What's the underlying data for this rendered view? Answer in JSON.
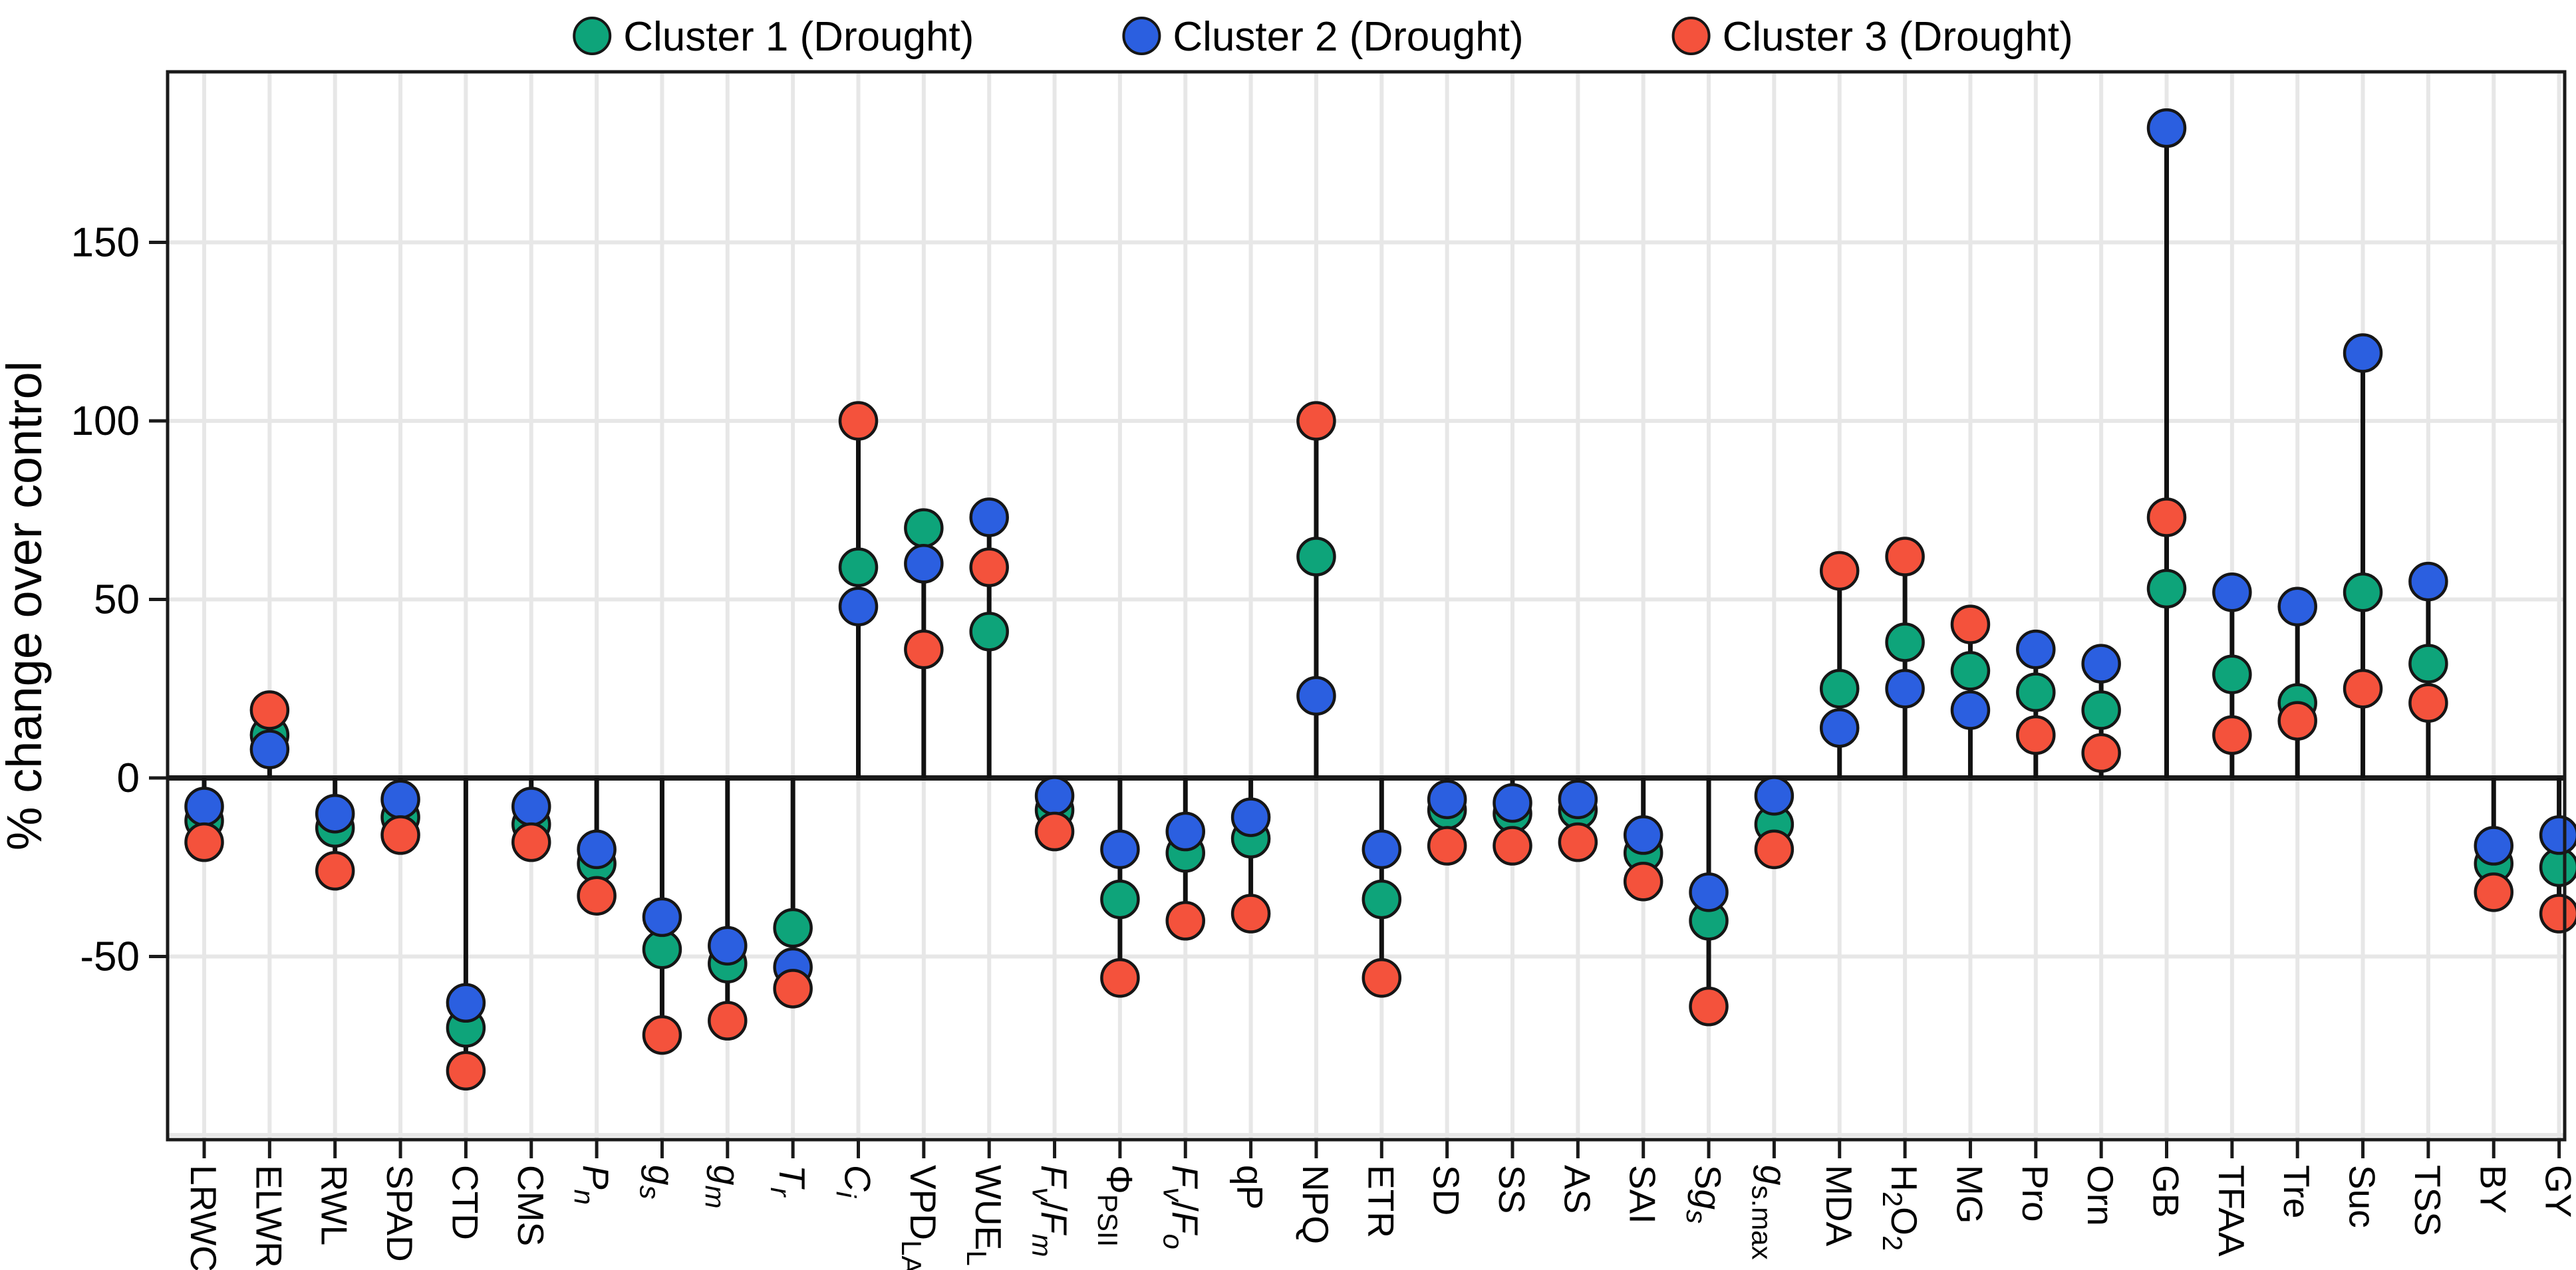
{
  "figure": {
    "background": "#ffffff",
    "legend_position": "top-center",
    "legend": [
      {
        "label": "Cluster 1 (Drought)",
        "color": "#0EA47A"
      },
      {
        "label": "Cluster 2 (Drought)",
        "color": "#2B5FE0"
      },
      {
        "label": "Cluster 3 (Drought)",
        "color": "#F4523C"
      }
    ],
    "colors": {
      "cluster1_green": "#0EA47A",
      "cluster2_blue": "#2B5FE0",
      "cluster3_red": "#F4523C",
      "point_outline": "#161616",
      "stem": "#111111",
      "gridline": "#E7E7E7",
      "axis": "#1a1a1a"
    }
  },
  "chart_data": {
    "type": "scatter",
    "subtype": "lollipop",
    "title": "",
    "xlabel": "",
    "ylabel": "% change over control",
    "ylim": [
      -101,
      198
    ],
    "yticks": [
      150,
      100,
      50,
      0,
      -50
    ],
    "gridlines": [
      150,
      100,
      50,
      0,
      -50,
      -100
    ],
    "grid": "light-gray-both",
    "legend_position": "top-center",
    "categories": [
      "LRWC",
      "ELWR",
      "RWL",
      "SPAD",
      "CTD",
      "CMS",
      "Pn",
      "gs",
      "gm",
      "Tr",
      "Ci",
      "VPD_LA",
      "WUE_L",
      "Fv/Fm",
      "PhiPSII",
      "Fv/Fo",
      "qP",
      "NPQ",
      "ETR",
      "SD",
      "SS",
      "AS",
      "SAI",
      "Sgs",
      "gs.max",
      "MDA",
      "H2O2",
      "MG",
      "Pro",
      "Orn",
      "GB",
      "TFAA",
      "Tre",
      "Suc",
      "TSS",
      "BY",
      "GY"
    ],
    "categories_rich": [
      [
        [
          "LRWC",
          ""
        ]
      ],
      [
        [
          "ELWR",
          ""
        ]
      ],
      [
        [
          "RWL",
          ""
        ]
      ],
      [
        [
          "SPAD",
          ""
        ]
      ],
      [
        [
          "CTD",
          ""
        ]
      ],
      [
        [
          "CMS",
          ""
        ]
      ],
      [
        [
          "P",
          "i"
        ],
        [
          "n",
          "i-sub"
        ]
      ],
      [
        [
          "g",
          "i"
        ],
        [
          "s",
          "i-sub"
        ]
      ],
      [
        [
          "g",
          "i"
        ],
        [
          "m",
          "i-sub"
        ]
      ],
      [
        [
          "T",
          "i"
        ],
        [
          "r",
          "i-sub"
        ]
      ],
      [
        [
          "C",
          "i"
        ],
        [
          "i",
          "i-sub"
        ]
      ],
      [
        [
          "VPD",
          ""
        ],
        [
          "LA",
          "sub"
        ]
      ],
      [
        [
          "WUE",
          ""
        ],
        [
          "L",
          "sub"
        ]
      ],
      [
        [
          "F",
          "i"
        ],
        [
          "v",
          "i-sub"
        ],
        [
          "/",
          ""
        ],
        [
          "F",
          "i"
        ],
        [
          "m",
          "i-sub"
        ]
      ],
      [
        [
          "Φ",
          ""
        ],
        [
          "PSII",
          "sub"
        ]
      ],
      [
        [
          "F",
          "i"
        ],
        [
          "v",
          "i-sub"
        ],
        [
          "/",
          ""
        ],
        [
          "F",
          "i"
        ],
        [
          "o",
          "i-sub"
        ]
      ],
      [
        [
          "qP",
          ""
        ]
      ],
      [
        [
          "NPQ",
          ""
        ]
      ],
      [
        [
          "ETR",
          ""
        ]
      ],
      [
        [
          "SD",
          ""
        ]
      ],
      [
        [
          "SS",
          ""
        ]
      ],
      [
        [
          "AS",
          ""
        ]
      ],
      [
        [
          "SAI",
          ""
        ]
      ],
      [
        [
          "S",
          ""
        ],
        [
          "g",
          "i"
        ],
        [
          "s",
          "i-sub"
        ]
      ],
      [
        [
          "g",
          "i"
        ],
        [
          "s.max",
          "sub"
        ]
      ],
      [
        [
          "MDA",
          ""
        ]
      ],
      [
        [
          "H",
          ""
        ],
        [
          "2",
          "sub"
        ],
        [
          "O",
          ""
        ],
        [
          "2",
          "sub"
        ]
      ],
      [
        [
          "MG",
          ""
        ]
      ],
      [
        [
          "Pro",
          ""
        ]
      ],
      [
        [
          "Orn",
          ""
        ]
      ],
      [
        [
          "GB",
          ""
        ]
      ],
      [
        [
          "TFAA",
          ""
        ]
      ],
      [
        [
          "Tre",
          ""
        ]
      ],
      [
        [
          "Suc",
          ""
        ]
      ],
      [
        [
          "TSS",
          ""
        ]
      ],
      [
        [
          "BY",
          ""
        ]
      ],
      [
        [
          "GY",
          ""
        ]
      ]
    ],
    "series": [
      {
        "name": "Cluster 1 (Drought)",
        "color": "#0EA47A",
        "values": [
          -12,
          12,
          -14,
          -11,
          -70,
          -13,
          -24,
          -48,
          -52,
          -42,
          59,
          70,
          41,
          -9,
          -34,
          -21,
          -17,
          62,
          -34,
          -9,
          -10,
          -9,
          -21,
          -40,
          -13,
          25,
          38,
          30,
          24,
          19,
          53,
          29,
          21,
          52,
          32,
          -24,
          -25
        ]
      },
      {
        "name": "Cluster 2 (Drought)",
        "color": "#2B5FE0",
        "values": [
          -8,
          8,
          -10,
          -6,
          -63,
          -8,
          -20,
          -39,
          -47,
          -53,
          48,
          60,
          73,
          -5,
          -20,
          -15,
          -11,
          23,
          -20,
          -6,
          -7,
          -6,
          -16,
          -32,
          -5,
          14,
          25,
          19,
          36,
          32,
          182,
          52,
          48,
          119,
          55,
          -19,
          -16
        ]
      },
      {
        "name": "Cluster 3 (Drought)",
        "color": "#F4523C",
        "values": [
          -18,
          19,
          -26,
          -16,
          -82,
          -18,
          -33,
          -72,
          -68,
          -59,
          100,
          36,
          59,
          -15,
          -56,
          -40,
          -38,
          100,
          -56,
          -19,
          -19,
          -18,
          -29,
          -64,
          -20,
          58,
          62,
          43,
          12,
          7,
          73,
          12,
          16,
          25,
          21,
          -32,
          -38
        ]
      }
    ]
  }
}
